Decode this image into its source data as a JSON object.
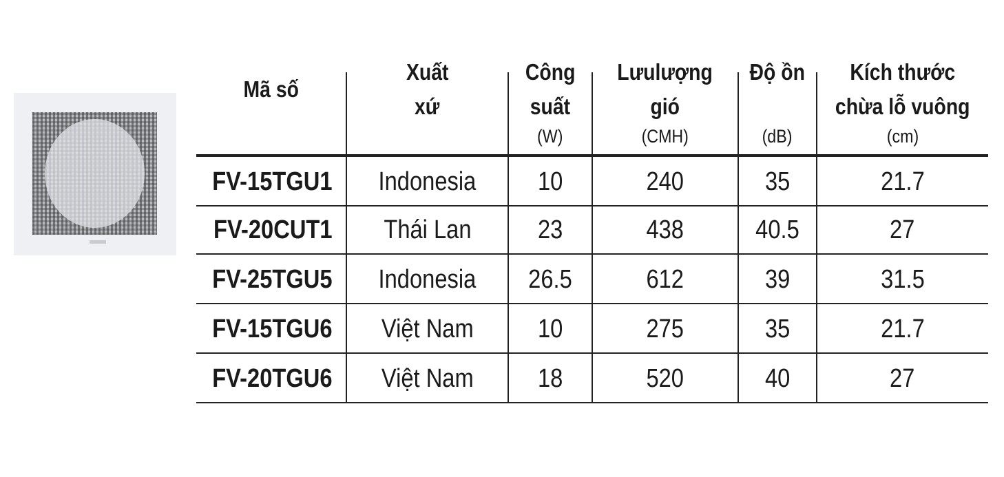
{
  "product_image": {
    "icon": "ventilation-fan-icon"
  },
  "table": {
    "headers": [
      {
        "lines": [
          "Mã số"
        ],
        "unit": ""
      },
      {
        "lines": [
          "Xuất",
          "xứ"
        ],
        "unit": ""
      },
      {
        "lines": [
          "Công",
          "suất"
        ],
        "unit": "(W)"
      },
      {
        "lines": [
          "Lưulượng",
          "gió"
        ],
        "unit": "(CMH)"
      },
      {
        "lines": [
          "Độ ồn",
          ""
        ],
        "unit": "(dB)"
      },
      {
        "lines": [
          "Kích thước",
          "chừa lỗ vuông"
        ],
        "unit": "(cm)"
      }
    ],
    "rows": [
      [
        "FV-15TGU1",
        "Indonesia",
        "10",
        "240",
        "35",
        "21.7"
      ],
      [
        "FV-20CUT1",
        "Thái Lan",
        "23",
        "438",
        "40.5",
        "27"
      ],
      [
        "FV-25TGU5",
        "Indonesia",
        "26.5",
        "612",
        "39",
        "31.5"
      ],
      [
        "FV-15TGU6",
        "Việt Nam",
        "10",
        "275",
        "35",
        "21.7"
      ],
      [
        "FV-20TGU6",
        "Việt Nam",
        "18",
        "520",
        "40",
        "27"
      ]
    ]
  }
}
